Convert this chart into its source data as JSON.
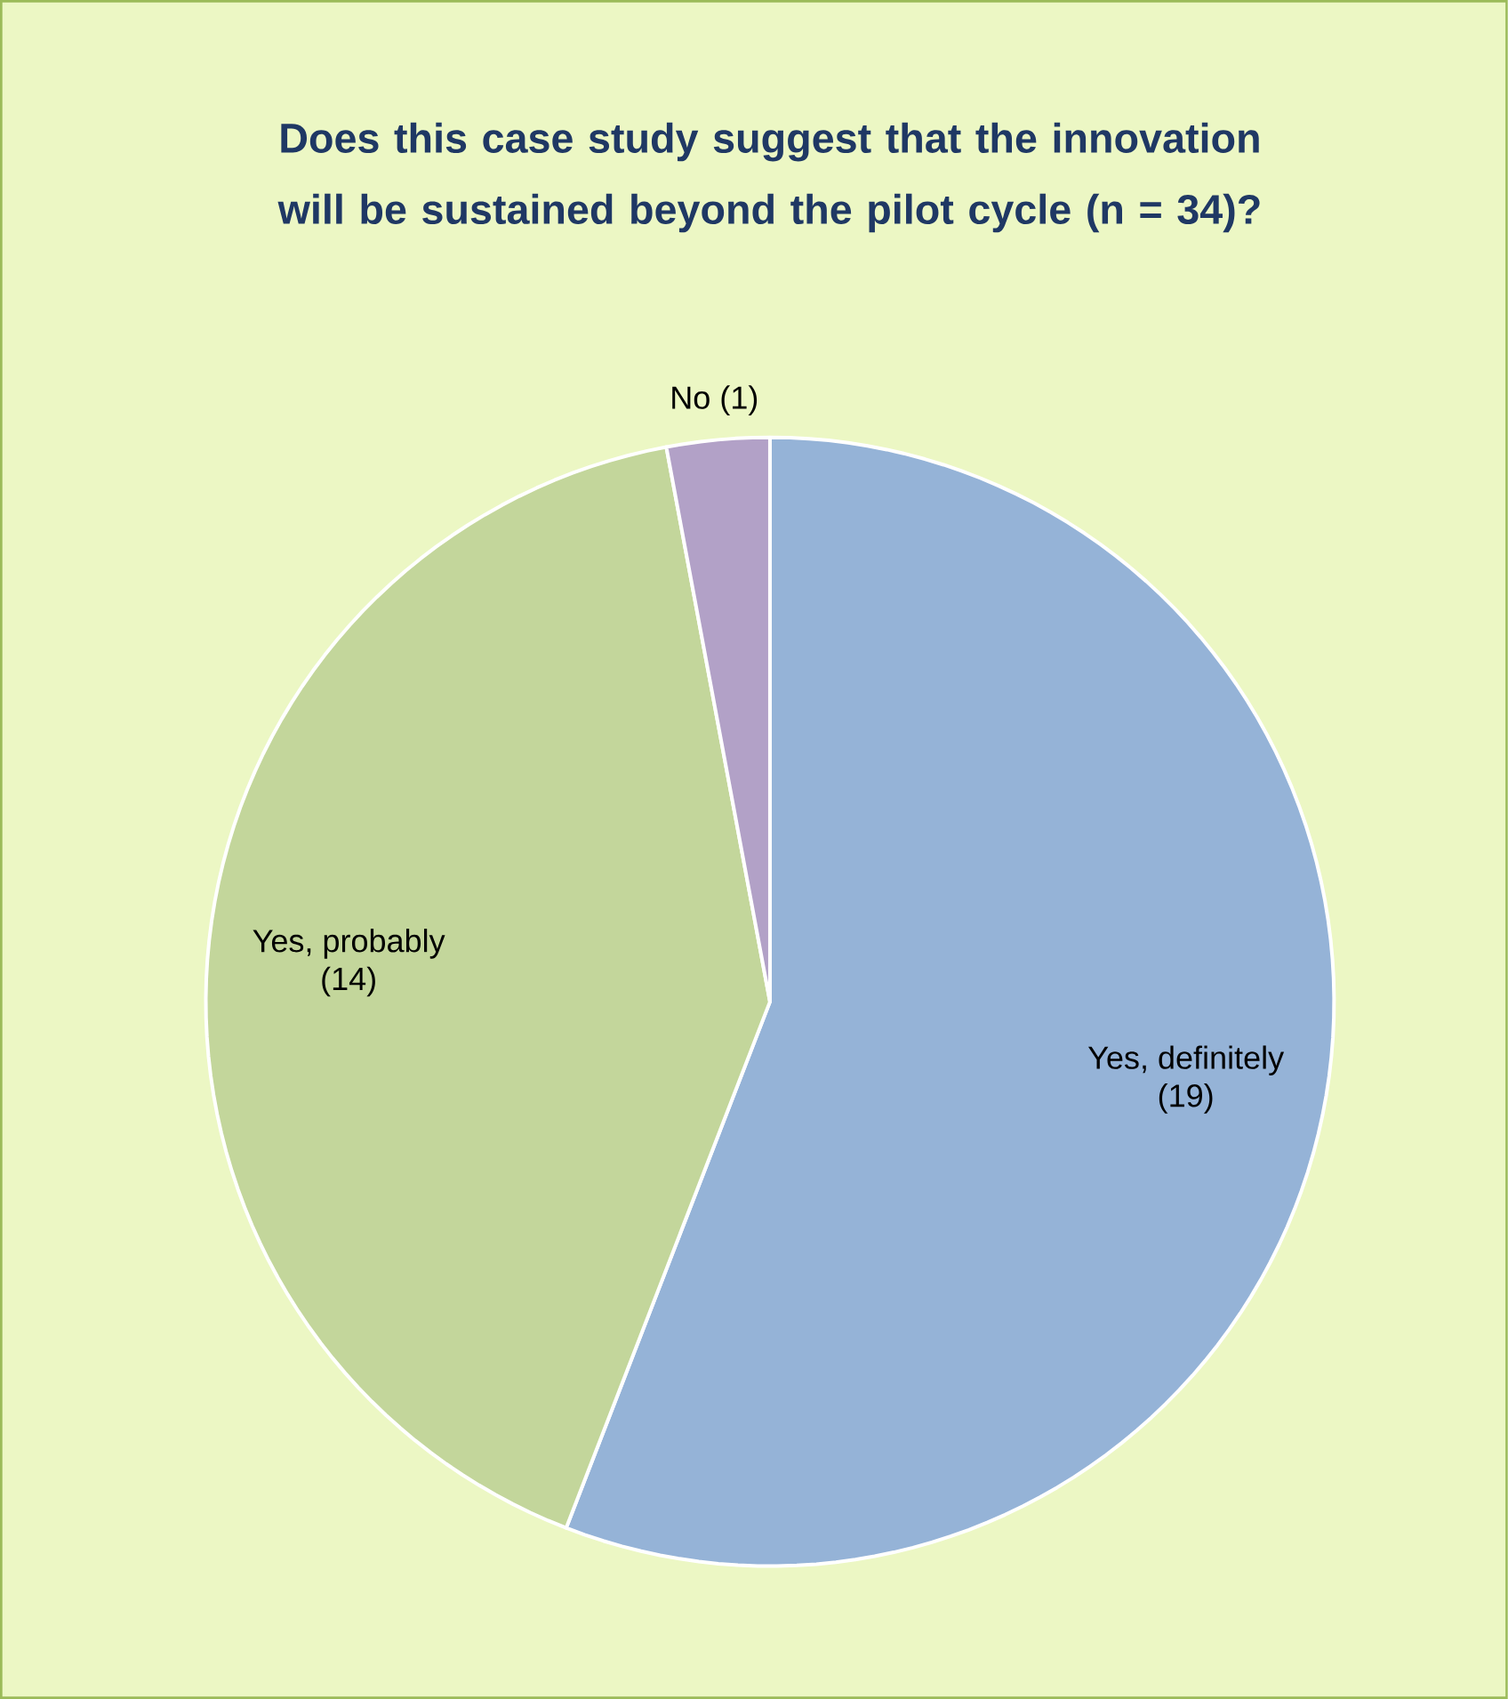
{
  "chart_data": {
    "type": "pie",
    "title": "Does this case study suggest that the innovation will be sustained beyond the pilot cycle (n = 34)?",
    "categories": [
      "Yes, definitely",
      "Yes, probably",
      "No"
    ],
    "values": [
      19,
      14,
      1
    ],
    "value_labels": [
      "(19)",
      "(14)",
      "(1)"
    ],
    "colors": [
      "#95b3d7",
      "#c3d69b",
      "#b2a1c7"
    ]
  }
}
